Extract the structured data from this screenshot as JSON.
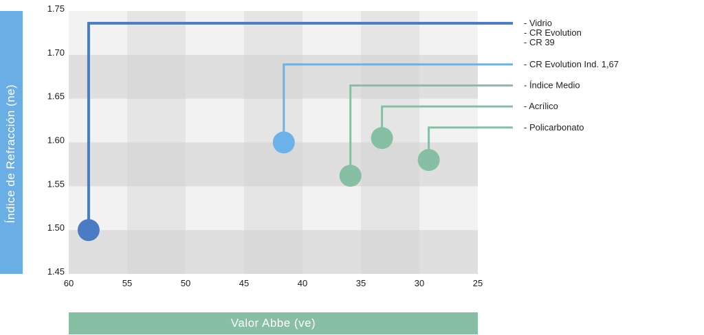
{
  "chart_data": {
    "type": "scatter",
    "xlabel": "Valor Abbe (ve)",
    "ylabel": "Índice de Refracción (ne)",
    "xlim": [
      60,
      25
    ],
    "ylim": [
      1.45,
      1.75
    ],
    "x_ticks": [
      "60",
      "55",
      "50",
      "45",
      "40",
      "35",
      "30",
      "25"
    ],
    "y_ticks": [
      "1.45",
      "1.50",
      "1.55",
      "1.60",
      "1.65",
      "1.70",
      "1.75"
    ],
    "grid": true,
    "points": [
      {
        "x": 58.3,
        "y": 1.5,
        "label_y": 1.736,
        "labels": [
          "- Vidrio",
          "- CR Evolution",
          "- CR 39"
        ],
        "color": "#4a7cc4"
      },
      {
        "x": 41.6,
        "y": 1.6,
        "label_y": 1.689,
        "labels": [
          "- CR Evolution Ind. 1,67"
        ],
        "color": "#6ab2e8"
      },
      {
        "x": 35.9,
        "y": 1.562,
        "label_y": 1.665,
        "labels": [
          "- Índice Medio"
        ],
        "color": "#87bfa5"
      },
      {
        "x": 33.2,
        "y": 1.605,
        "label_y": 1.641,
        "labels": [
          "- Acrílico"
        ],
        "color": "#87bfa5"
      },
      {
        "x": 29.2,
        "y": 1.58,
        "label_y": 1.617,
        "labels": [
          "- Policarbonato"
        ],
        "color": "#87bfa5"
      }
    ]
  }
}
